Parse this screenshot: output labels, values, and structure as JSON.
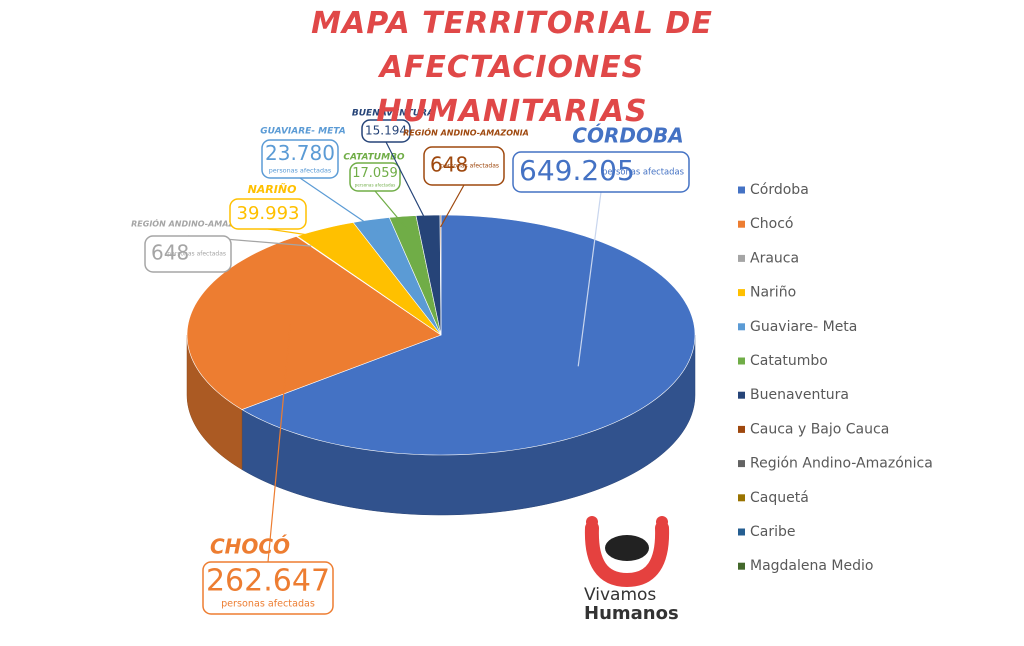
{
  "chart_data": {
    "type": "pie3d",
    "title": "MAPA TERRITORIAL DE AFECTACIONES HUMANITARIAS",
    "categories": [
      "Córdoba",
      "Chocó",
      "Arauca",
      "Nariño",
      "Guaviare- Meta",
      "Catatumbo",
      "Buenaventura",
      "Cauca y Bajo Cauca",
      "Región Andino-Amazónica",
      "Caquetá",
      "Caribe",
      "Magdalena Medio"
    ],
    "values": [
      649205,
      262647,
      648,
      39993,
      23780,
      17059,
      15194,
      648,
      null,
      null,
      null,
      null
    ],
    "value_labels": [
      "649.205",
      "262.647",
      "648",
      "39.993",
      "23.780",
      "17.059",
      "15.194",
      "648",
      null,
      null,
      null,
      null
    ],
    "callout_titles": [
      "CÓRDOBA",
      "CHOCÓ",
      "REGIÓN ANDINO-AMAZONIA",
      "NARIÑO",
      "GUAVIARE- META",
      "CATATUMBO",
      "BUENAVENTURA",
      "REGIÓN ANDINO-AMAZONIA",
      null,
      null,
      null,
      null
    ],
    "callout_notes": [
      "personas afectadas",
      "personas afectadas",
      "personas afectadas",
      null,
      "personas afectadas",
      "personas afectadas",
      null,
      "personas afectadas",
      null,
      null,
      null,
      null
    ],
    "colors": [
      "#4472c4",
      "#ed7d31",
      "#a5a5a5",
      "#ffc000",
      "#5b9bd5",
      "#70ad47",
      "#264478",
      "#9e480e",
      "#636363",
      "#997300",
      "#255e91",
      "#43682b"
    ],
    "legend": "right"
  },
  "logo": {
    "line1": "Vivamos",
    "line2": "Humanos"
  }
}
